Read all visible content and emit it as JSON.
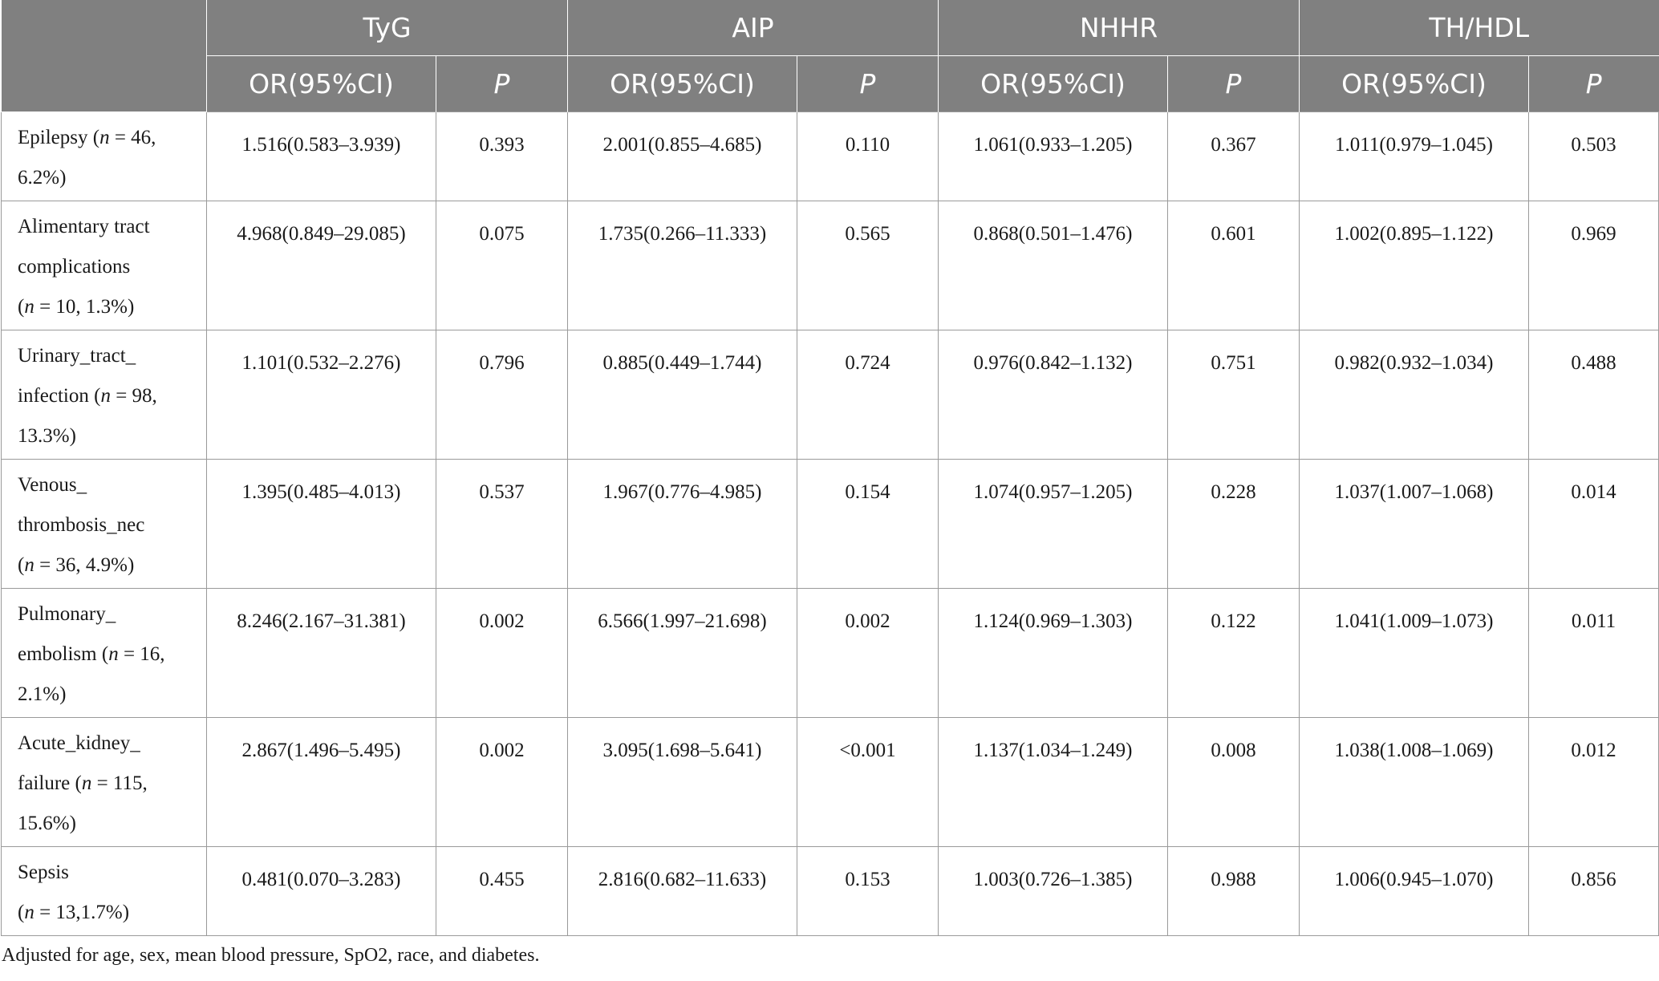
{
  "headers": {
    "groups": [
      "TyG",
      "AIP",
      "NHHR",
      "TH/HDL"
    ],
    "or_label": "OR(95%CI)",
    "p_label": "P"
  },
  "rows": [
    {
      "label_lines": [
        [
          {
            "t": "Epilepsy ("
          },
          {
            "t": "n",
            "i": true
          },
          {
            "t": " = 46,"
          }
        ],
        [
          {
            "t": "6.2%)"
          }
        ]
      ],
      "cells": [
        "1.516(0.583–3.939)",
        "0.393",
        "2.001(0.855–4.685)",
        "0.110",
        "1.061(0.933–1.205)",
        "0.367",
        "1.011(0.979–1.045)",
        "0.503"
      ]
    },
    {
      "label_lines": [
        [
          {
            "t": "Alimentary tract"
          }
        ],
        [
          {
            "t": "complications"
          }
        ],
        [
          {
            "t": "("
          },
          {
            "t": "n",
            "i": true
          },
          {
            "t": " = 10, 1.3%)"
          }
        ]
      ],
      "cells": [
        "4.968(0.849–29.085)",
        "0.075",
        "1.735(0.266–11.333)",
        "0.565",
        "0.868(0.501–1.476)",
        "0.601",
        "1.002(0.895–1.122)",
        "0.969"
      ]
    },
    {
      "label_lines": [
        [
          {
            "t": "Urinary_tract_"
          }
        ],
        [
          {
            "t": "infection ("
          },
          {
            "t": "n",
            "i": true
          },
          {
            "t": " = 98,"
          }
        ],
        [
          {
            "t": "13.3%)"
          }
        ]
      ],
      "cells": [
        "1.101(0.532–2.276)",
        "0.796",
        "0.885(0.449–1.744)",
        "0.724",
        "0.976(0.842–1.132)",
        "0.751",
        "0.982(0.932–1.034)",
        "0.488"
      ]
    },
    {
      "label_lines": [
        [
          {
            "t": "Venous_"
          }
        ],
        [
          {
            "t": "thrombosis_nec"
          }
        ],
        [
          {
            "t": "("
          },
          {
            "t": "n",
            "i": true
          },
          {
            "t": " = 36, 4.9%)"
          }
        ]
      ],
      "cells": [
        "1.395(0.485–4.013)",
        "0.537",
        "1.967(0.776–4.985)",
        "0.154",
        "1.074(0.957–1.205)",
        "0.228",
        "1.037(1.007–1.068)",
        "0.014"
      ]
    },
    {
      "label_lines": [
        [
          {
            "t": "Pulmonary_"
          }
        ],
        [
          {
            "t": "embolism ("
          },
          {
            "t": "n",
            "i": true
          },
          {
            "t": " = 16,"
          }
        ],
        [
          {
            "t": "2.1%)"
          }
        ]
      ],
      "cells": [
        "8.246(2.167–31.381)",
        "0.002",
        "6.566(1.997–21.698)",
        "0.002",
        "1.124(0.969–1.303)",
        "0.122",
        "1.041(1.009–1.073)",
        "0.011"
      ]
    },
    {
      "label_lines": [
        [
          {
            "t": "Acute_kidney_"
          }
        ],
        [
          {
            "t": "failure ("
          },
          {
            "t": "n",
            "i": true
          },
          {
            "t": " = 115,"
          }
        ],
        [
          {
            "t": "15.6%)"
          }
        ]
      ],
      "cells": [
        "2.867(1.496–5.495)",
        "0.002",
        "3.095(1.698–5.641)",
        "<0.001",
        "1.137(1.034–1.249)",
        "0.008",
        "1.038(1.008–1.069)",
        "0.012"
      ]
    },
    {
      "label_lines": [
        [
          {
            "t": "Sepsis"
          }
        ],
        [
          {
            "t": "("
          },
          {
            "t": "n",
            "i": true
          },
          {
            "t": " = 13,1.7%)"
          }
        ]
      ],
      "cells": [
        "0.481(0.070–3.283)",
        "0.455",
        "2.816(0.682–11.633)",
        "0.153",
        "1.003(0.726–1.385)",
        "0.988",
        "1.006(0.945–1.070)",
        "0.856"
      ]
    }
  ],
  "footnote": "Adjusted for age, sex, mean blood pressure, SpO2, race, and diabetes."
}
